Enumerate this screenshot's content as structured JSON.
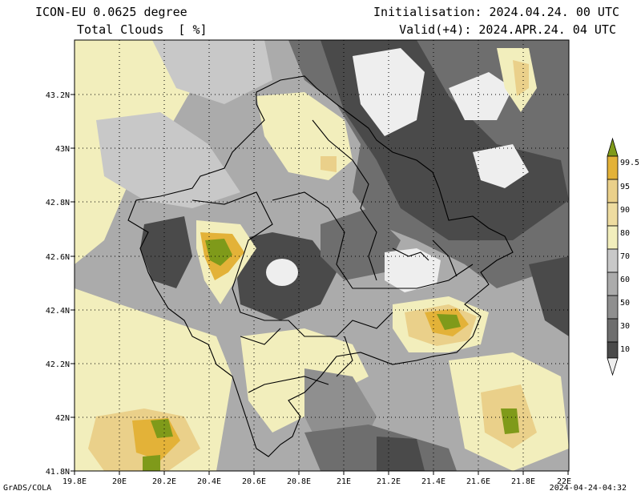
{
  "header": {
    "model": "ICON-EU 0.0625 degree",
    "field": "Total Clouds  [ %]",
    "init": "Initialisation: 2024.04.24. 00 UTC",
    "valid": "Valid(+4): 2024.APR.24. 04 UTC"
  },
  "map": {
    "lon_ticks": [
      "19.8E",
      "20E",
      "20.2E",
      "20.4E",
      "20.6E",
      "20.8E",
      "21E",
      "21.2E",
      "21.4E",
      "21.6E",
      "21.8E",
      "22E"
    ],
    "lat_ticks": [
      "43.2N",
      "43N",
      "42.8N",
      "42.6N",
      "42.4N",
      "42.2N",
      "42N",
      "41.8N"
    ],
    "colors": {
      "c10": "#4a4a4a",
      "c30": "#6e6e6e",
      "c50": "#8f8f8f",
      "c60": "#ababab",
      "c70": "#c8c8c8",
      "c80": "#f2eebc",
      "c90": "#ead08a",
      "c95": "#e3b238",
      "c995": "#7f9a1a",
      "clear": "#eeeeee"
    }
  },
  "legend": {
    "labels": [
      "99.5",
      "95",
      "90",
      "80",
      "70",
      "60",
      "50",
      "30",
      "10"
    ],
    "colors": [
      "#7f9a1a",
      "#e3b238",
      "#ead08a",
      "#f2eebc",
      "#c8c8c8",
      "#ababab",
      "#8f8f8f",
      "#6e6e6e",
      "#4a4a4a",
      "#eeeeee"
    ]
  },
  "footer": {
    "credit": "GrADS/COLA",
    "timestamp": "2024-04-24-04:32"
  }
}
